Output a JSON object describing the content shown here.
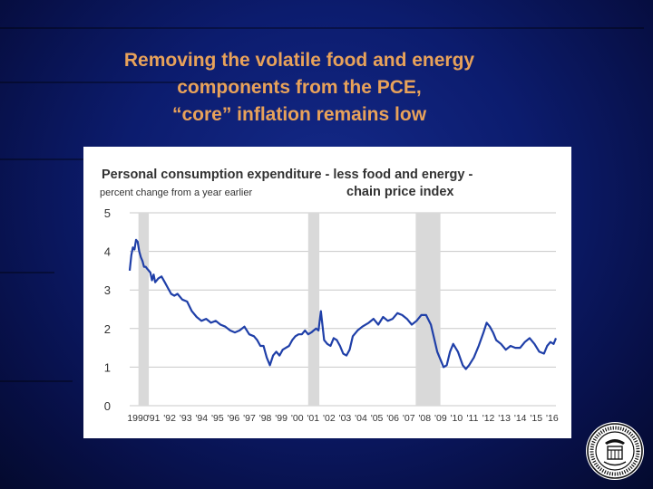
{
  "slide": {
    "title_lines": [
      "Removing the volatile food and energy",
      "components from the PCE,",
      "“core” inflation remains low"
    ]
  },
  "colors": {
    "background": "#0c1c6e",
    "title": "#e8a25a",
    "line": "#1f3fa8",
    "recession": "#d9d9d9"
  },
  "icons": {
    "seal": "federal-reserve-seal-icon"
  },
  "chart_data": {
    "type": "line",
    "title": "Personal consumption expenditure - less food and energy - chain price index",
    "title_line1": "Personal consumption expenditure - less food and energy -",
    "title_line2": "chain price index",
    "ylabel": "percent change from a year earlier",
    "xlabel": "",
    "ylim": [
      0,
      5
    ],
    "xlim": [
      1990,
      2016.75
    ],
    "yticks": [
      0,
      1,
      2,
      3,
      4,
      5
    ],
    "ytick_labels": [
      "0",
      "1",
      "2",
      "3",
      "4",
      "5"
    ],
    "xticks": [
      1990,
      1991,
      1992,
      1993,
      1994,
      1995,
      1996,
      1997,
      1998,
      1999,
      2000,
      2001,
      2002,
      2003,
      2004,
      2005,
      2006,
      2007,
      2008,
      2009,
      2010,
      2011,
      2012,
      2013,
      2014,
      2015,
      2016
    ],
    "xtick_labels": [
      "1990",
      "'91",
      "'92",
      "'93",
      "'94",
      "'95",
      "'96",
      "'97",
      "'98",
      "'99",
      "'00",
      "'01",
      "'02",
      "'03",
      "'04",
      "'05",
      "'06",
      "'07",
      "'08",
      "'09",
      "'10",
      "'11",
      "'12",
      "'13",
      "'14",
      "'15",
      "'16"
    ],
    "grid": true,
    "recessions": [
      [
        1990.55,
        1991.2
      ],
      [
        2001.2,
        2001.9
      ],
      [
        2007.95,
        2009.5
      ]
    ],
    "series": [
      {
        "x": [
          1990.0,
          1990.1,
          1990.2,
          1990.3,
          1990.4,
          1990.5,
          1990.6,
          1990.7,
          1990.8,
          1990.9,
          1991.0,
          1991.1,
          1991.2,
          1991.3,
          1991.4,
          1991.5,
          1991.6,
          1991.8,
          1992.0,
          1992.2,
          1992.4,
          1992.6,
          1992.8,
          1993.0,
          1993.3,
          1993.6,
          1993.9,
          1994.2,
          1994.5,
          1994.8,
          1995.1,
          1995.4,
          1995.7,
          1996.0,
          1996.3,
          1996.6,
          1996.9,
          1997.2,
          1997.5,
          1997.8,
          1998.0,
          1998.2,
          1998.4,
          1998.5,
          1998.6,
          1998.8,
          1999.0,
          1999.2,
          1999.4,
          1999.6,
          1999.8,
          2000.0,
          2000.2,
          2000.4,
          2000.6,
          2000.8,
          2001.0,
          2001.2,
          2001.4,
          2001.55,
          2001.7,
          2001.85,
          2002.0,
          2002.2,
          2002.4,
          2002.6,
          2002.8,
          2003.0,
          2003.2,
          2003.4,
          2003.6,
          2003.8,
          2004.0,
          2004.3,
          2004.6,
          2005.0,
          2005.3,
          2005.6,
          2005.9,
          2006.2,
          2006.5,
          2006.8,
          2007.1,
          2007.4,
          2007.7,
          2008.0,
          2008.3,
          2008.6,
          2008.9,
          2009.1,
          2009.3,
          2009.5,
          2009.7,
          2009.9,
          2010.1,
          2010.3,
          2010.6,
          2010.9,
          2011.1,
          2011.3,
          2011.6,
          2011.9,
          2012.2,
          2012.4,
          2012.6,
          2012.8,
          2013.0,
          2013.3,
          2013.6,
          2013.9,
          2014.2,
          2014.5,
          2014.8,
          2015.1,
          2015.4,
          2015.7,
          2016.0,
          2016.2,
          2016.4,
          2016.6,
          2016.75
        ],
        "values": [
          3.5,
          3.9,
          4.1,
          4.05,
          4.3,
          4.25,
          4.0,
          3.85,
          3.75,
          3.6,
          3.6,
          3.55,
          3.5,
          3.45,
          3.25,
          3.4,
          3.2,
          3.3,
          3.35,
          3.2,
          3.05,
          2.9,
          2.85,
          2.9,
          2.75,
          2.7,
          2.45,
          2.3,
          2.2,
          2.25,
          2.15,
          2.2,
          2.1,
          2.05,
          1.95,
          1.9,
          1.95,
          2.05,
          1.85,
          1.8,
          1.7,
          1.55,
          1.55,
          1.4,
          1.25,
          1.05,
          1.3,
          1.4,
          1.3,
          1.45,
          1.5,
          1.55,
          1.7,
          1.8,
          1.85,
          1.85,
          1.95,
          1.85,
          1.9,
          1.95,
          2.0,
          1.95,
          2.45,
          1.7,
          1.6,
          1.55,
          1.75,
          1.7,
          1.55,
          1.35,
          1.3,
          1.45,
          1.8,
          1.95,
          2.05,
          2.15,
          2.25,
          2.1,
          2.3,
          2.2,
          2.25,
          2.4,
          2.35,
          2.25,
          2.1,
          2.2,
          2.35,
          2.35,
          2.1,
          1.75,
          1.4,
          1.2,
          1.0,
          1.05,
          1.4,
          1.6,
          1.4,
          1.05,
          0.95,
          1.05,
          1.25,
          1.55,
          1.9,
          2.15,
          2.05,
          1.9,
          1.7,
          1.6,
          1.45,
          1.55,
          1.5,
          1.5,
          1.65,
          1.75,
          1.6,
          1.4,
          1.35,
          1.55,
          1.65,
          1.6,
          1.75
        ]
      }
    ]
  }
}
